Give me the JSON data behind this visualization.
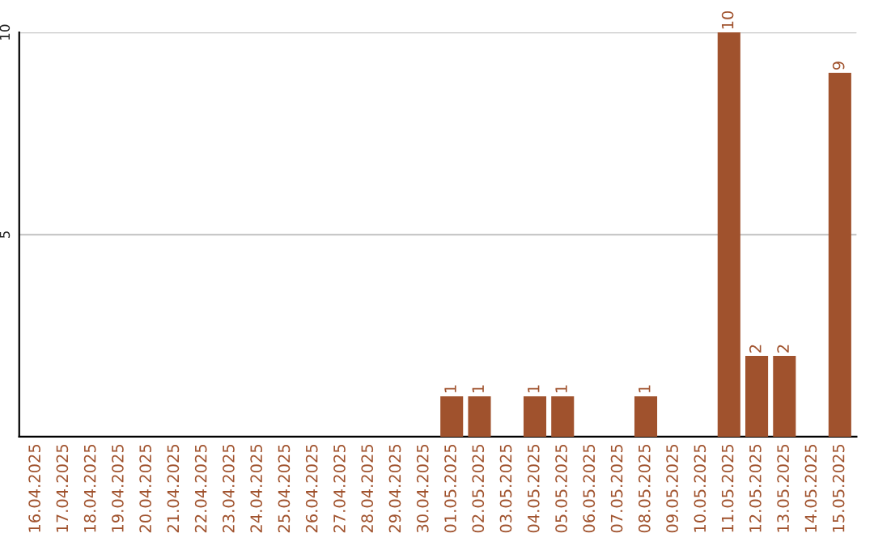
{
  "chart_data": {
    "type": "bar",
    "categories": [
      "16.04.2025",
      "17.04.2025",
      "18.04.2025",
      "19.04.2025",
      "20.04.2025",
      "21.04.2025",
      "22.04.2025",
      "23.04.2025",
      "24.04.2025",
      "25.04.2025",
      "26.04.2025",
      "27.04.2025",
      "28.04.2025",
      "29.04.2025",
      "30.04.2025",
      "01.05.2025",
      "02.05.2025",
      "03.05.2025",
      "04.05.2025",
      "05.05.2025",
      "06.05.2025",
      "07.05.2025",
      "08.05.2025",
      "09.05.2025",
      "10.05.2025",
      "11.05.2025",
      "12.05.2025",
      "13.05.2025",
      "14.05.2025",
      "15.05.2025"
    ],
    "values": [
      null,
      null,
      null,
      null,
      null,
      null,
      null,
      null,
      null,
      null,
      null,
      null,
      null,
      null,
      null,
      1,
      1,
      null,
      1,
      1,
      null,
      null,
      1,
      null,
      null,
      10,
      2,
      2,
      null,
      9
    ],
    "value_labels": [
      null,
      null,
      null,
      null,
      null,
      null,
      null,
      null,
      null,
      null,
      null,
      null,
      null,
      null,
      null,
      "1",
      "1",
      null,
      "1",
      "1",
      null,
      null,
      "1",
      null,
      null,
      "10",
      "2",
      "2",
      null,
      "9"
    ],
    "color": "#a0522d",
    "ylim": [
      0,
      10
    ],
    "yticks": [
      5,
      10
    ],
    "grid": "y",
    "legend": false
  }
}
